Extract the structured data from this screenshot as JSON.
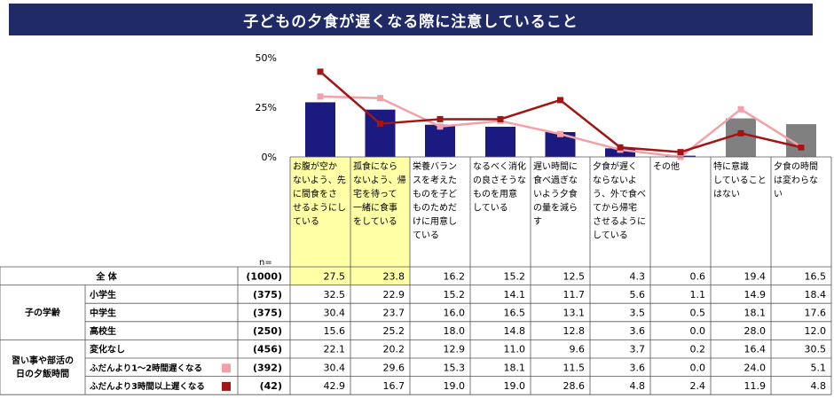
{
  "title": "子どもの夕食が遅くなる際に注意していること",
  "n_label": "n=",
  "chart_data": {
    "type": "bar",
    "y_ticks": [
      "50%",
      "25%",
      "0%"
    ],
    "ylim": [
      0,
      50
    ],
    "categories": [
      [
        "お腹が空か",
        "ないよう、先",
        "に間食をさ",
        "せるようにし",
        "ている"
      ],
      [
        "孤食になら",
        "ないよう、帰",
        "宅を待って",
        "一緒に食事",
        "をしている"
      ],
      [
        "栄養バラン",
        "スを考えた",
        "ものを子ど",
        "ものためだ",
        "けに用意し",
        "ている"
      ],
      [
        "なるべく消化",
        "の良さそうな",
        "ものを用意",
        "している"
      ],
      [
        "遅い時間に",
        "食べ過ぎな",
        "いよう夕食",
        "の量を減ら",
        "す"
      ],
      [
        "夕食が遅く",
        "ならないよ",
        "う、外で食べ",
        "てから帰宅",
        "させるように",
        "している"
      ],
      [
        "その他"
      ],
      [
        "特に意識",
        "していること",
        "はない"
      ],
      [
        "夕食の時間",
        "は変わらな",
        "い"
      ]
    ],
    "bar_values": [
      27.5,
      23.8,
      16.2,
      15.2,
      12.5,
      4.3,
      0.6,
      19.4,
      16.5
    ],
    "bar_colors": [
      "#1a1a80",
      "#1a1a80",
      "#1a1a80",
      "#1a1a80",
      "#1a1a80",
      "#1a1a80",
      "#1a1a80",
      "#808080",
      "#808080"
    ],
    "series": [
      {
        "key": "light",
        "color": "#f4a0a8",
        "values": [
          30.4,
          29.6,
          15.3,
          18.1,
          11.5,
          3.6,
          0.0,
          24.0,
          5.1
        ]
      },
      {
        "key": "dark",
        "color": "#a31414",
        "values": [
          42.9,
          16.7,
          19.0,
          19.0,
          28.6,
          4.8,
          2.4,
          11.9,
          4.8
        ]
      }
    ]
  },
  "table": {
    "rows": [
      {
        "group": "",
        "label": "全 体",
        "n": "(1000)",
        "values": [
          "27.5",
          "23.8",
          "16.2",
          "15.2",
          "12.5",
          "4.3",
          "0.6",
          "19.4",
          "16.5"
        ],
        "marker": ""
      },
      {
        "group": "子の学齢",
        "label": "小学生",
        "n": "(375)",
        "values": [
          "32.5",
          "22.9",
          "15.2",
          "14.1",
          "11.7",
          "5.6",
          "1.1",
          "14.9",
          "18.4"
        ],
        "marker": ""
      },
      {
        "group": "",
        "label": "中学生",
        "n": "(375)",
        "values": [
          "30.4",
          "23.7",
          "16.0",
          "16.5",
          "13.1",
          "3.5",
          "0.5",
          "18.1",
          "17.6"
        ],
        "marker": ""
      },
      {
        "group": "",
        "label": "高校生",
        "n": "(250)",
        "values": [
          "15.6",
          "25.2",
          "18.0",
          "14.8",
          "12.8",
          "3.6",
          "0.0",
          "28.0",
          "12.0"
        ],
        "marker": ""
      },
      {
        "group": "習い事や部活の日の夕飯時間",
        "label": "変化なし",
        "n": "(456)",
        "values": [
          "22.1",
          "20.2",
          "12.9",
          "11.0",
          "9.6",
          "3.7",
          "0.2",
          "16.4",
          "30.5"
        ],
        "marker": ""
      },
      {
        "group": "",
        "label": "ふだんより1～2時間遅くなる",
        "n": "(392)",
        "values": [
          "30.4",
          "29.6",
          "15.3",
          "18.1",
          "11.5",
          "3.6",
          "0.0",
          "24.0",
          "5.1"
        ],
        "marker": "#f4a0a8"
      },
      {
        "group": "",
        "label": "ふだんより3時間以上遅くなる",
        "n": "(42)",
        "values": [
          "42.9",
          "16.7",
          "19.0",
          "19.0",
          "28.6",
          "4.8",
          "2.4",
          "11.9",
          "4.8"
        ],
        "marker": "#a31414"
      }
    ],
    "group_labels": {
      "school": [
        "子の学齢"
      ],
      "activity": [
        "習い事や部活の",
        "日の夕飯時間"
      ]
    }
  }
}
